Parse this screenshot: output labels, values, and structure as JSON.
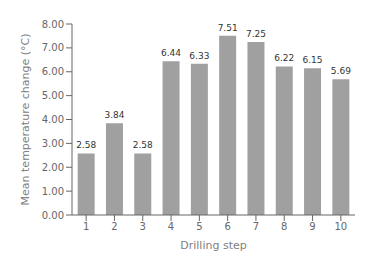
{
  "chart_data": {
    "type": "bar",
    "categories": [
      "1",
      "2",
      "3",
      "4",
      "5",
      "6",
      "7",
      "8",
      "9",
      "10"
    ],
    "values": [
      2.58,
      3.84,
      2.58,
      6.44,
      6.33,
      7.51,
      7.25,
      6.22,
      6.15,
      5.69
    ],
    "color": "#a0a0a0",
    "xlabel": "Drilling step",
    "ylabel": "Mean temperature change (°C)",
    "ylim": [
      0.0,
      8.0
    ],
    "yticks": [
      {
        "value": 0.0,
        "label": "0.00"
      },
      {
        "value": 1.0,
        "label": "1.00"
      },
      {
        "value": 2.0,
        "label": "2.00"
      },
      {
        "value": 3.0,
        "label": "3.00"
      },
      {
        "value": 4.0,
        "label": "4.00"
      },
      {
        "value": 5.0,
        "label": "5.00"
      },
      {
        "value": 6.0,
        "label": "6.00"
      },
      {
        "value": 7.0,
        "label": "7.00"
      },
      {
        "value": 8.0,
        "label": "8.00"
      }
    ],
    "data_labels": true,
    "grid": false
  }
}
